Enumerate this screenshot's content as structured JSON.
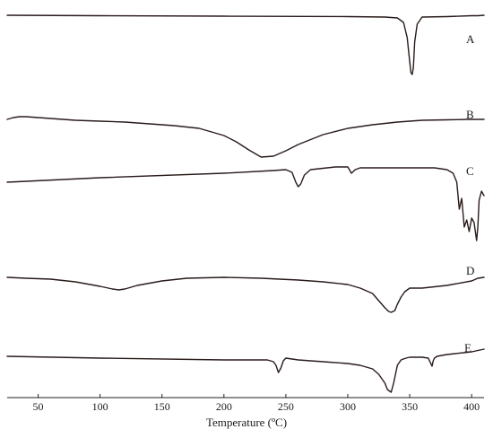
{
  "chart_data": {
    "type": "line",
    "title": "",
    "xlabel": "Temperature (ºC)",
    "ylabel": "",
    "xlim": [
      25,
      410
    ],
    "x_ticks": [
      50,
      100,
      150,
      200,
      250,
      300,
      350,
      400
    ],
    "grid": false,
    "series": [
      {
        "name": "A",
        "color": "#2a1a1a",
        "x": [
          25,
          100,
          200,
          300,
          330,
          340,
          345,
          348,
          350,
          351,
          352,
          353,
          354,
          356,
          360,
          380,
          400,
          405,
          410
        ],
        "y": [
          0.0,
          -0.5,
          -1.0,
          -1.5,
          -2.0,
          -3.0,
          -8.0,
          -25.0,
          -52.0,
          -64.0,
          -66.0,
          -58.0,
          -30.0,
          -10.0,
          -2.0,
          -1.5,
          -0.5,
          -0.5,
          0.0
        ]
      },
      {
        "name": "B",
        "color": "#2a1a1a",
        "x": [
          25,
          30,
          35,
          40,
          60,
          80,
          100,
          120,
          140,
          160,
          180,
          200,
          210,
          220,
          230,
          240,
          250,
          260,
          280,
          300,
          320,
          340,
          360,
          380,
          400,
          410
        ],
        "y": [
          0.0,
          2.0,
          3.0,
          3.0,
          1.0,
          -1.0,
          -2.0,
          -3.0,
          -5.0,
          -7.0,
          -10.0,
          -18.0,
          -25.0,
          -34.0,
          -42.0,
          -41.0,
          -35.0,
          -28.0,
          -17.0,
          -10.0,
          -6.0,
          -3.0,
          -1.0,
          -0.5,
          0.0,
          0.0
        ]
      },
      {
        "name": "C",
        "color": "#2a1a1a",
        "x": [
          25,
          100,
          200,
          240,
          250,
          255,
          258,
          260,
          262,
          265,
          270,
          290,
          300,
          303,
          306,
          310,
          330,
          350,
          370,
          380,
          385,
          388,
          390,
          392,
          394,
          396,
          398,
          400,
          402,
          404,
          405,
          406,
          408,
          410
        ],
        "y": [
          0.0,
          5.0,
          10.0,
          13.0,
          14.0,
          11.0,
          0.0,
          -5.0,
          -2.0,
          8.0,
          14.0,
          17.0,
          17.0,
          10.0,
          14.0,
          16.0,
          16.0,
          16.0,
          16.0,
          14.0,
          10.0,
          0.0,
          -30.0,
          -18.0,
          -50.0,
          -42.0,
          -55.0,
          -40.0,
          -45.0,
          -65.0,
          -50.0,
          -20.0,
          -10.0,
          -15.0
        ]
      },
      {
        "name": "D",
        "color": "#2a1a1a",
        "x": [
          25,
          40,
          60,
          80,
          100,
          110,
          115,
          120,
          130,
          150,
          170,
          200,
          230,
          260,
          280,
          300,
          310,
          320,
          325,
          330,
          333,
          335,
          338,
          340,
          343,
          346,
          350,
          360,
          380,
          400,
          405,
          410
        ],
        "y": [
          0.0,
          -1.0,
          -2.0,
          -5.0,
          -10.0,
          -13.0,
          -14.0,
          -13.0,
          -9.0,
          -4.0,
          -1.0,
          0.0,
          -1.0,
          -3.0,
          -5.0,
          -8.0,
          -12.0,
          -18.0,
          -26.0,
          -34.0,
          -38.0,
          -39.0,
          -37.0,
          -30.0,
          -22.0,
          -16.0,
          -12.0,
          -12.0,
          -9.0,
          -4.0,
          -1.0,
          0.0
        ]
      },
      {
        "name": "E",
        "color": "#2a1a1a",
        "x": [
          25,
          100,
          200,
          235,
          240,
          242,
          244,
          246,
          248,
          250,
          260,
          280,
          300,
          310,
          320,
          325,
          330,
          332,
          335,
          337,
          340,
          343,
          347,
          350,
          360,
          365,
          367,
          368,
          369,
          370,
          372,
          380,
          400,
          410
        ],
        "y": [
          0.0,
          -2.0,
          -4.0,
          -4.0,
          -6.0,
          -10.0,
          -18.0,
          -13.0,
          -5.0,
          -2.0,
          -4.0,
          -6.0,
          -8.0,
          -10.0,
          -14.0,
          -20.0,
          -30.0,
          -37.0,
          -40.0,
          -30.0,
          -10.0,
          -4.0,
          -2.0,
          -1.0,
          -1.0,
          -2.0,
          -8.0,
          -11.0,
          -5.0,
          -2.0,
          0.0,
          2.0,
          5.0,
          8.0
        ]
      }
    ]
  }
}
